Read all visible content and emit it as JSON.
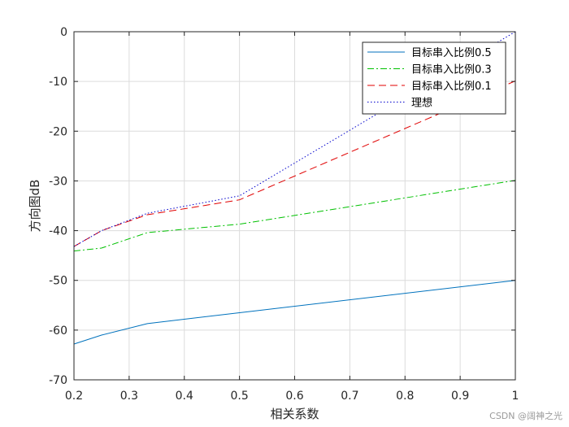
{
  "chart_data": {
    "type": "line",
    "xlabel": "相关系数",
    "ylabel": "方向图dB",
    "xlim": [
      0.2,
      1
    ],
    "ylim": [
      -70,
      0
    ],
    "x_ticks": [
      0.2,
      0.3,
      0.4,
      0.5,
      0.6,
      0.7,
      0.8,
      0.9,
      1
    ],
    "y_ticks": [
      0,
      -10,
      -20,
      -30,
      -40,
      -50,
      -60,
      -70
    ],
    "grid": true,
    "legend_position": "top-right",
    "series": [
      {
        "name": "目标串入比例0.5",
        "color": "#0072BD",
        "dash": "solid",
        "x": [
          0.2,
          0.25,
          0.333,
          0.5,
          1.0
        ],
        "y": [
          -62.8,
          -61.0,
          -58.7,
          -56.5,
          -50.0
        ]
      },
      {
        "name": "目标串入比例0.3",
        "color": "#00C000",
        "dash": "dashdot",
        "x": [
          0.2,
          0.25,
          0.333,
          0.5,
          1.0
        ],
        "y": [
          -44.1,
          -43.5,
          -40.4,
          -38.7,
          -29.9
        ]
      },
      {
        "name": "目标串入比例0.1",
        "color": "#E00000",
        "dash": "dashed",
        "x": [
          0.2,
          0.25,
          0.333,
          0.5,
          1.0
        ],
        "y": [
          -43.2,
          -40.0,
          -36.8,
          -33.8,
          -9.9
        ]
      },
      {
        "name": "理想",
        "color": "#0000CC",
        "dash": "dotted",
        "x": [
          0.2,
          0.25,
          0.333,
          0.5,
          1.0
        ],
        "y": [
          -43.2,
          -40.0,
          -36.5,
          -33.0,
          0.0
        ]
      }
    ]
  },
  "watermark": "CSDN @阔神之光"
}
